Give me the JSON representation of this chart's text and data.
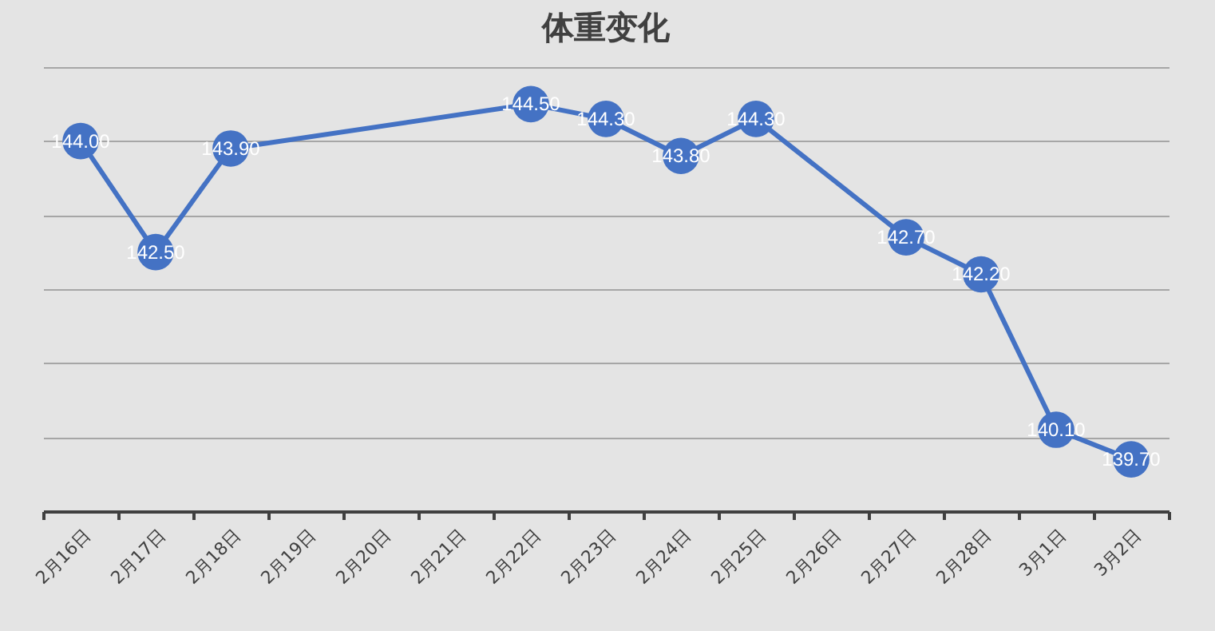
{
  "chart_data": {
    "type": "line",
    "title": "体重变化",
    "categories": [
      "2月16日",
      "2月17日",
      "2月18日",
      "2月19日",
      "2月20日",
      "2月21日",
      "2月22日",
      "2月23日",
      "2月24日",
      "2月25日",
      "2月26日",
      "2月27日",
      "2月28日",
      "3月1日",
      "3月2日"
    ],
    "series": [
      {
        "color": "#4472c4",
        "values": [
          144.0,
          142.5,
          143.9,
          null,
          null,
          null,
          144.5,
          144.3,
          143.8,
          144.3,
          null,
          142.7,
          142.2,
          140.1,
          139.7
        ],
        "value_labels": [
          "144.00",
          "142.50",
          "143.90",
          null,
          null,
          null,
          "144.50",
          "144.30",
          "143.80",
          "144.30",
          null,
          "142.70",
          "142.20",
          "140.10",
          "139.70"
        ]
      }
    ],
    "grid": "y",
    "tick_labels": "x",
    "marker": "circle",
    "line_style": "solid"
  }
}
